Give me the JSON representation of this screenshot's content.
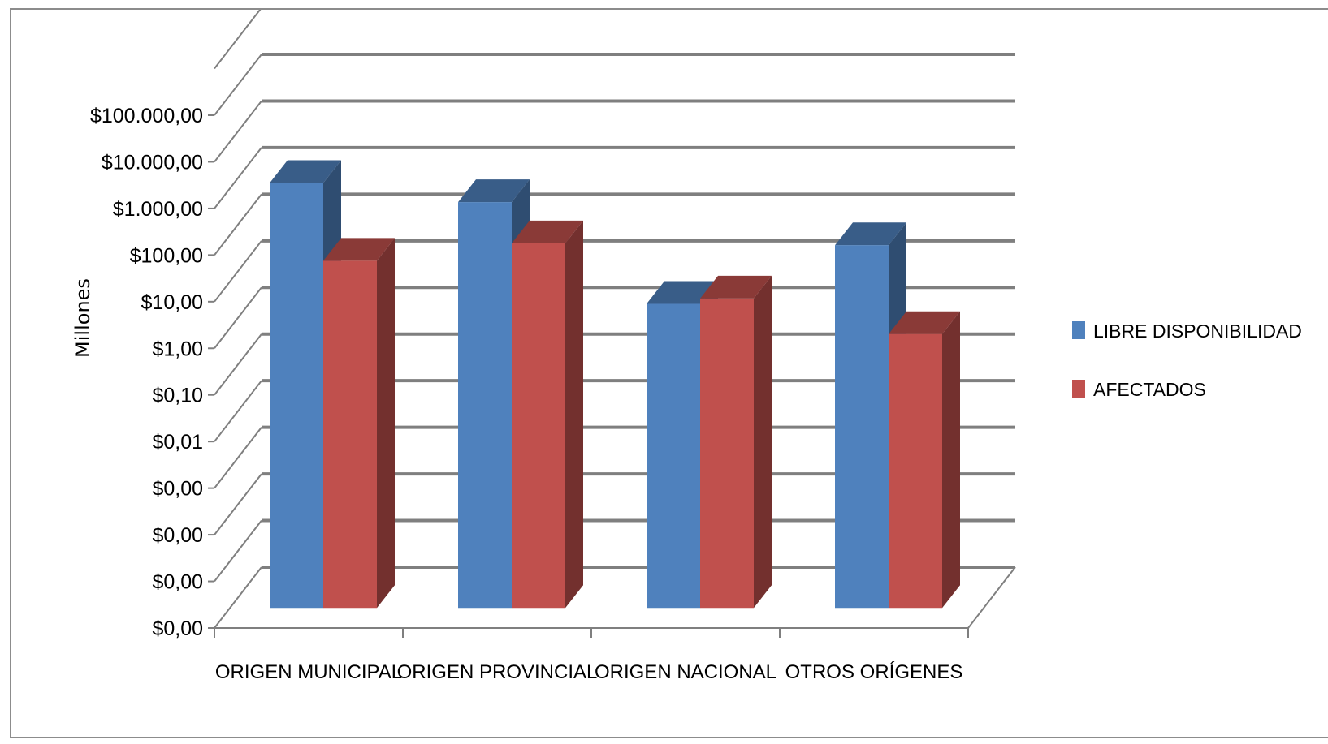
{
  "chart_data": {
    "type": "bar",
    "is_3d": true,
    "log_scale": true,
    "ylabel": "Millones",
    "xlabel": "",
    "categories": [
      "ORIGEN MUNICIPAL",
      "ORIGEN PROVINCIAL",
      "ORIGEN NACIONAL",
      "OTROS ORÍGENES"
    ],
    "y_ticks": [
      "$0,00",
      "$0,00",
      "$0,00",
      "$0,00",
      "$0,01",
      "$0,10",
      "$1,00",
      "$10,00",
      "$100,00",
      "$1.000,00",
      "$10.000,00",
      "$100.000,00"
    ],
    "ylim": [
      1e-07,
      10000000
    ],
    "grid": true,
    "legend_position": "right",
    "series": [
      {
        "name": "LIBRE DISPONIBILIDAD",
        "color": "#4f81bd",
        "values": [
          40000,
          12000,
          20,
          800
        ]
      },
      {
        "name": "AFECTADOS",
        "color": "#c0504d",
        "values": [
          300,
          900,
          28,
          3
        ]
      }
    ]
  }
}
